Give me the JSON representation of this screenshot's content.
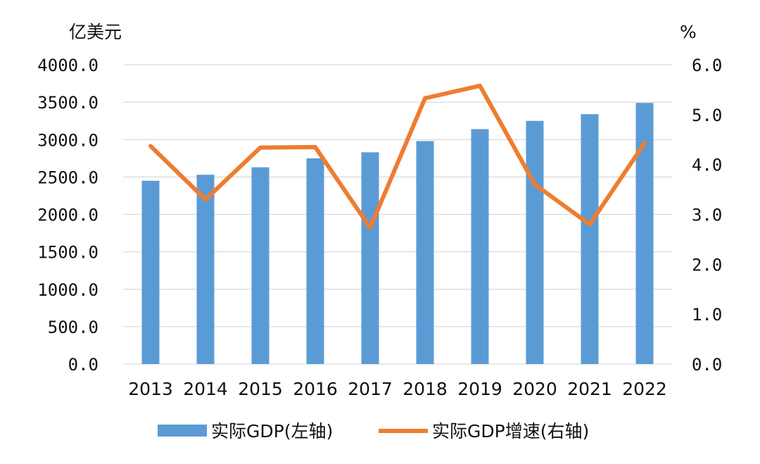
{
  "chart_data": {
    "type": "bar+line",
    "categories": [
      "2013",
      "2014",
      "2015",
      "2016",
      "2017",
      "2018",
      "2019",
      "2020",
      "2021",
      "2022"
    ],
    "series": [
      {
        "name": "实际GDP(左轴)",
        "type": "bar",
        "axis": "left",
        "color": "#5B9BD5",
        "values": [
          2450,
          2530,
          2630,
          2750,
          2830,
          2980,
          3140,
          3250,
          3340,
          3490
        ]
      },
      {
        "name": "实际GDP增速(右轴)",
        "type": "line",
        "axis": "right",
        "color": "#ED7D31",
        "values": [
          4.37,
          3.3,
          4.34,
          4.35,
          2.73,
          5.33,
          5.58,
          3.6,
          2.8,
          4.43
        ]
      }
    ],
    "left_axis": {
      "unit": "亿美元",
      "ylim": [
        0,
        4000
      ],
      "ticks": [
        "0.0",
        "500.0",
        "1000.0",
        "1500.0",
        "2000.0",
        "2500.0",
        "3000.0",
        "3500.0",
        "4000.0"
      ]
    },
    "right_axis": {
      "unit": "%",
      "ylim": [
        0,
        6
      ],
      "ticks": [
        "0.0",
        "1.0",
        "2.0",
        "3.0",
        "4.0",
        "5.0",
        "6.0"
      ]
    },
    "grid": true,
    "legend_position": "bottom"
  }
}
